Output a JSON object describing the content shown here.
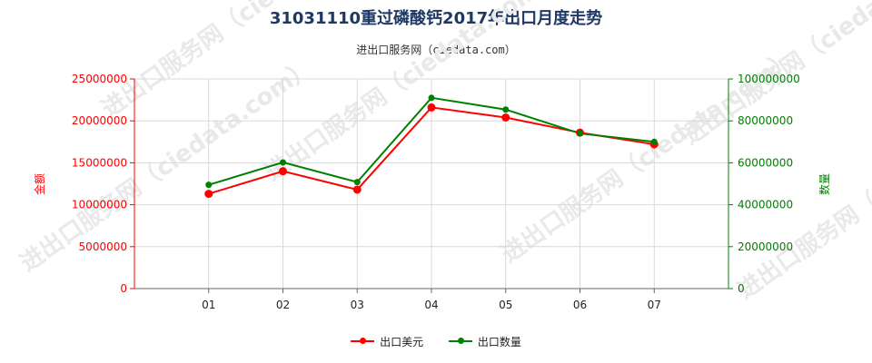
{
  "title": "31031110重过磷酸钙2017年出口月度走势",
  "subtitle": "进出口服务网（ciedata.com）",
  "colors": {
    "series_usd": "#ff0000",
    "series_qty": "#008000",
    "left_axis": "#ff0000",
    "right_axis": "#008000",
    "grid": "#d9d9d9"
  },
  "chart_data": {
    "type": "line",
    "title": "31031110重过磷酸钙2017年出口月度走势",
    "categories": [
      "01",
      "02",
      "03",
      "04",
      "05",
      "06",
      "07"
    ],
    "series": [
      {
        "name": "出口美元",
        "axis": "left",
        "values": [
          11300000,
          14000000,
          11800000,
          21600000,
          20400000,
          18600000,
          17200000
        ]
      },
      {
        "name": "出口数量",
        "axis": "right",
        "values": [
          49500000,
          60200000,
          50800000,
          91000000,
          85400000,
          74000000,
          70000000
        ]
      }
    ],
    "ylabel_left": "金额",
    "ylabel_right": "数量",
    "ylim_left": [
      0,
      25000000
    ],
    "ylim_right": [
      0,
      100000000
    ],
    "yticks_left": [
      "0",
      "5000000",
      "10000000",
      "15000000",
      "20000000",
      "25000000"
    ],
    "yticks_right": [
      "0",
      "20000000",
      "40000000",
      "60000000",
      "80000000",
      "100000000"
    ],
    "grid": true,
    "legend_position": "bottom"
  }
}
